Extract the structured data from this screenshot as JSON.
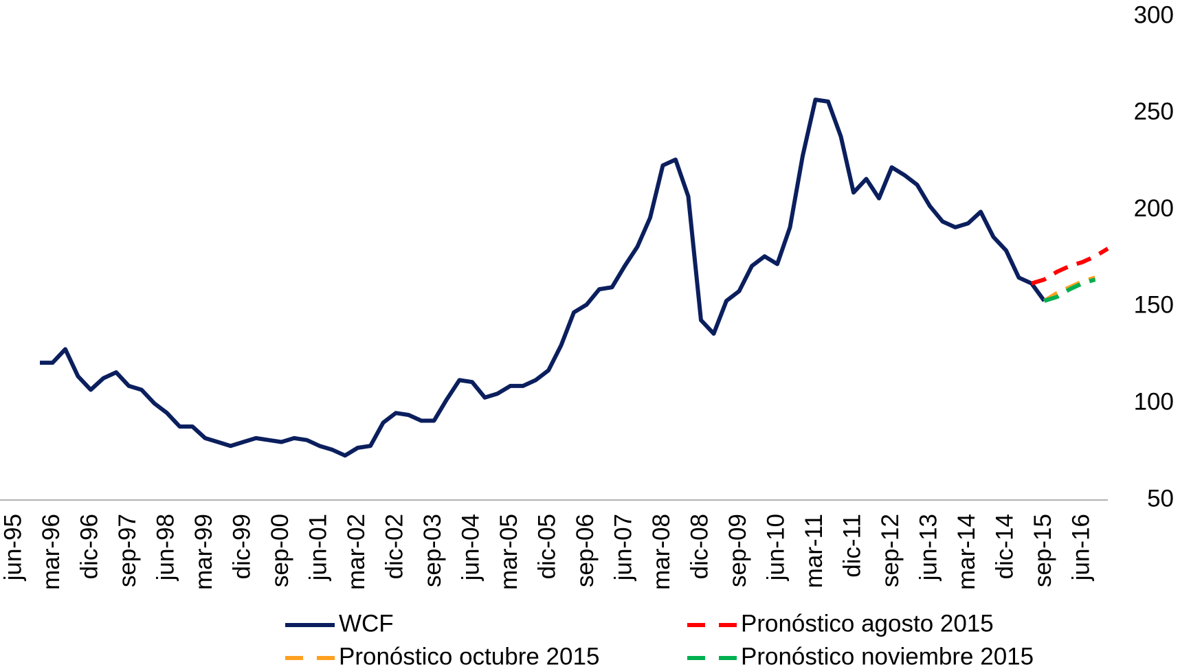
{
  "chart_data": {
    "type": "line",
    "categories": [
      "jun-95",
      null,
      null,
      "mar-96",
      null,
      null,
      "dic-96",
      null,
      null,
      "sep-97",
      null,
      null,
      "jun-98",
      null,
      null,
      "mar-99",
      null,
      null,
      "dic-99",
      null,
      null,
      "sep-00",
      null,
      null,
      "jun-01",
      null,
      null,
      "mar-02",
      null,
      null,
      "dic-02",
      null,
      null,
      "sep-03",
      null,
      null,
      "jun-04",
      null,
      null,
      "mar-05",
      null,
      null,
      "dic-05",
      null,
      null,
      "sep-06",
      null,
      null,
      "jun-07",
      null,
      null,
      "mar-08",
      null,
      null,
      "dic-08",
      null,
      null,
      "sep-09",
      null,
      null,
      "jun-10",
      null,
      null,
      "mar-11",
      null,
      null,
      "dic-11",
      null,
      null,
      "sep-12",
      null,
      null,
      "jun-13",
      null,
      null,
      "mar-14",
      null,
      null,
      "dic-14",
      null,
      null,
      "sep-15",
      null,
      null,
      "jun-16",
      null,
      null
    ],
    "series": [
      {
        "name": "WCF",
        "color": "#0b1f5e",
        "dashed": false,
        "values": [
          null,
          null,
          121,
          121,
          128,
          114,
          107,
          113,
          116,
          109,
          107,
          100,
          95,
          88,
          88,
          82,
          80,
          78,
          80,
          82,
          81,
          80,
          82,
          81,
          78,
          76,
          73,
          77,
          78,
          90,
          95,
          94,
          91,
          91,
          102,
          112,
          111,
          103,
          105,
          109,
          109,
          112,
          117,
          130,
          147,
          151,
          159,
          160,
          171,
          181,
          196,
          223,
          226,
          207,
          143,
          136,
          153,
          158,
          171,
          176,
          172,
          191,
          228,
          257,
          256,
          238,
          209,
          216,
          206,
          222,
          218,
          213,
          202,
          194,
          191,
          193,
          199,
          186,
          179,
          165,
          162,
          153,
          null,
          null,
          null,
          null,
          null
        ]
      },
      {
        "name": "Pronóstico agosto 2015",
        "color": "#ff0000",
        "dashed": true,
        "values": [
          null,
          null,
          null,
          null,
          null,
          null,
          null,
          null,
          null,
          null,
          null,
          null,
          null,
          null,
          null,
          null,
          null,
          null,
          null,
          null,
          null,
          null,
          null,
          null,
          null,
          null,
          null,
          null,
          null,
          null,
          null,
          null,
          null,
          null,
          null,
          null,
          null,
          null,
          null,
          null,
          null,
          null,
          null,
          null,
          null,
          null,
          null,
          null,
          null,
          null,
          null,
          null,
          null,
          null,
          null,
          null,
          null,
          null,
          null,
          null,
          null,
          null,
          null,
          null,
          null,
          null,
          null,
          null,
          null,
          null,
          null,
          null,
          null,
          null,
          null,
          null,
          null,
          null,
          null,
          null,
          162,
          164,
          168,
          171,
          173,
          176,
          180
        ]
      },
      {
        "name": "Pronóstico octubre 2015",
        "color": "#ffa020",
        "dashed": true,
        "values": [
          null,
          null,
          null,
          null,
          null,
          null,
          null,
          null,
          null,
          null,
          null,
          null,
          null,
          null,
          null,
          null,
          null,
          null,
          null,
          null,
          null,
          null,
          null,
          null,
          null,
          null,
          null,
          null,
          null,
          null,
          null,
          null,
          null,
          null,
          null,
          null,
          null,
          null,
          null,
          null,
          null,
          null,
          null,
          null,
          null,
          null,
          null,
          null,
          null,
          null,
          null,
          null,
          null,
          null,
          null,
          null,
          null,
          null,
          null,
          null,
          null,
          null,
          null,
          null,
          null,
          null,
          null,
          null,
          null,
          null,
          null,
          null,
          null,
          null,
          null,
          null,
          null,
          null,
          null,
          null,
          null,
          153,
          157,
          160,
          163,
          165,
          null
        ]
      },
      {
        "name": "Pronóstico noviembre 2015",
        "color": "#00b050",
        "dashed": true,
        "values": [
          null,
          null,
          null,
          null,
          null,
          null,
          null,
          null,
          null,
          null,
          null,
          null,
          null,
          null,
          null,
          null,
          null,
          null,
          null,
          null,
          null,
          null,
          null,
          null,
          null,
          null,
          null,
          null,
          null,
          null,
          null,
          null,
          null,
          null,
          null,
          null,
          null,
          null,
          null,
          null,
          null,
          null,
          null,
          null,
          null,
          null,
          null,
          null,
          null,
          null,
          null,
          null,
          null,
          null,
          null,
          null,
          null,
          null,
          null,
          null,
          null,
          null,
          null,
          null,
          null,
          null,
          null,
          null,
          null,
          null,
          null,
          null,
          null,
          null,
          null,
          null,
          null,
          null,
          null,
          null,
          null,
          153,
          155,
          159,
          162,
          164,
          null
        ]
      }
    ],
    "ylim": [
      50,
      300
    ],
    "yticks": [
      50,
      100,
      150,
      200,
      250,
      300
    ],
    "grid": false,
    "y_axis_side": "right",
    "legend": "bottom"
  }
}
